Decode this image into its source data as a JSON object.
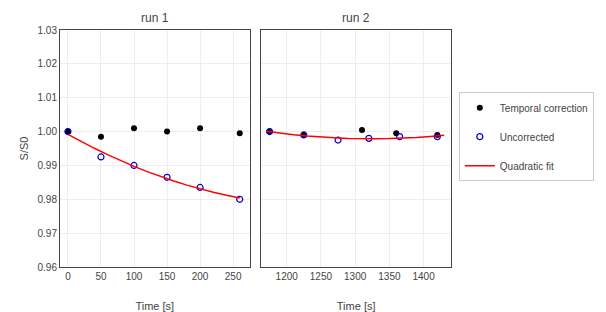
{
  "chart_data": [
    {
      "type": "scatter",
      "title": "run 1",
      "x_label": "Time [s]",
      "y_label": "S/S0",
      "xlim": [
        -12,
        275
      ],
      "xticks": [
        0,
        50,
        100,
        150,
        200,
        250
      ],
      "ylim": [
        0.96,
        1.03
      ],
      "yticks": [
        0.96,
        0.97,
        0.98,
        0.99,
        {
          "value": 1.0,
          "label": "1.00"
        },
        1.01,
        1.02,
        1.03
      ],
      "series": [
        {
          "name": "Temporal correction",
          "type": "scatter",
          "marker": "filled",
          "color": "#000000",
          "x": [
            0,
            50,
            100,
            150,
            200,
            260
          ],
          "values": [
            1.0,
            0.9985,
            1.001,
            1.0,
            1.001,
            0.9995
          ]
        },
        {
          "name": "Uncorrected",
          "type": "scatter",
          "marker": "open",
          "color": "#0000cc",
          "x": [
            0,
            50,
            100,
            150,
            200,
            260
          ],
          "values": [
            1.0,
            0.9925,
            0.99,
            0.9865,
            0.9835,
            0.98
          ]
        },
        {
          "name": "Quadratic fit",
          "type": "line",
          "color": "#ff0000",
          "x": [
            0,
            20,
            40,
            60,
            80,
            100,
            120,
            140,
            160,
            180,
            200,
            220,
            240,
            260
          ],
          "values": [
            0.999159,
            0.997053,
            0.995058,
            0.993173,
            0.991399,
            0.989734,
            0.98818,
            0.986736,
            0.985402,
            0.984178,
            0.983065,
            0.982062,
            0.981168,
            0.980386
          ]
        }
      ]
    },
    {
      "type": "scatter",
      "title": "run 2",
      "x_label": "Time [s]",
      "tick_labels": "x",
      "xlim": [
        1163,
        1440
      ],
      "xticks": [
        1200,
        1250,
        1300,
        1350,
        1400
      ],
      "ylim": [
        0.96,
        1.03
      ],
      "yticks": [
        0.96,
        0.97,
        0.98,
        0.99,
        1.0,
        1.01,
        1.02,
        1.03
      ],
      "series": [
        {
          "name": "Temporal correction",
          "type": "scatter",
          "marker": "filled",
          "color": "#000000",
          "x": [
            1175,
            1225,
            1310,
            1360,
            1420
          ],
          "values": [
            1.0,
            0.999,
            1.0005,
            0.9995,
            0.999
          ]
        },
        {
          "name": "Uncorrected",
          "type": "scatter",
          "marker": "open",
          "color": "#0000cc",
          "x": [
            1175,
            1225,
            1275,
            1320,
            1365,
            1420
          ],
          "values": [
            1.0,
            0.999,
            0.9975,
            0.998,
            0.9985,
            0.9985
          ]
        },
        {
          "name": "Quadratic fit",
          "type": "line",
          "color": "#ff0000",
          "x": [
            1170,
            1190,
            1210,
            1230,
            1250,
            1270,
            1290,
            1310,
            1330,
            1350,
            1370,
            1390,
            1410,
            1430
          ],
          "values": [
            1.000105,
            0.999564,
            0.999097,
            0.998706,
            0.99839,
            0.998149,
            0.997983,
            0.997892,
            0.997877,
            0.997936,
            0.99807,
            0.99828,
            0.998565,
            0.998924
          ]
        }
      ]
    }
  ]
}
